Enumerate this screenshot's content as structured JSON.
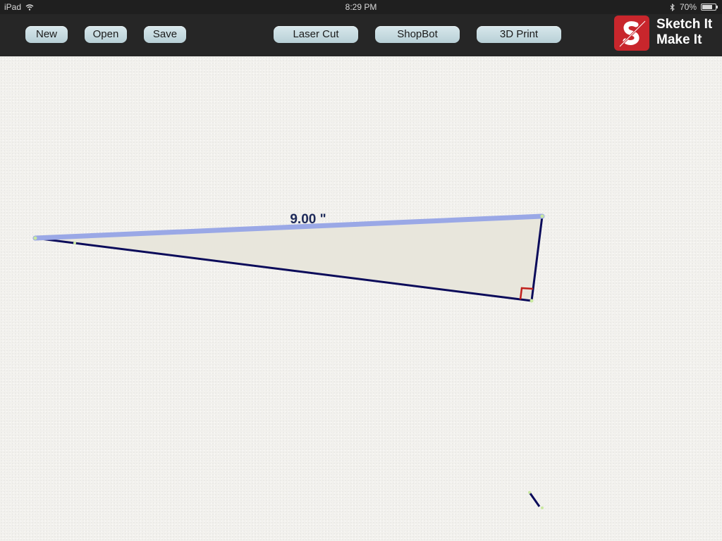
{
  "status": {
    "device": "iPad",
    "time": "8:29 PM",
    "battery": "70%",
    "battery_fraction": 0.7
  },
  "toolbar": {
    "file_buttons": [
      "New",
      "Open",
      "Save"
    ],
    "output_buttons": [
      "Laser Cut",
      "ShopBot",
      "3D Print"
    ]
  },
  "logo": {
    "line1": "Sketch It",
    "line2": "Make It",
    "color": "#c8262c"
  },
  "drawing": {
    "dimension_label": "9.00 \"",
    "shape": "right-triangle",
    "selected_edge_color": "#9aa8e6",
    "edge_color": "#0b0b5a",
    "right_angle_marker_color": "#c0201c",
    "fill_color": "#e8e6dc"
  }
}
